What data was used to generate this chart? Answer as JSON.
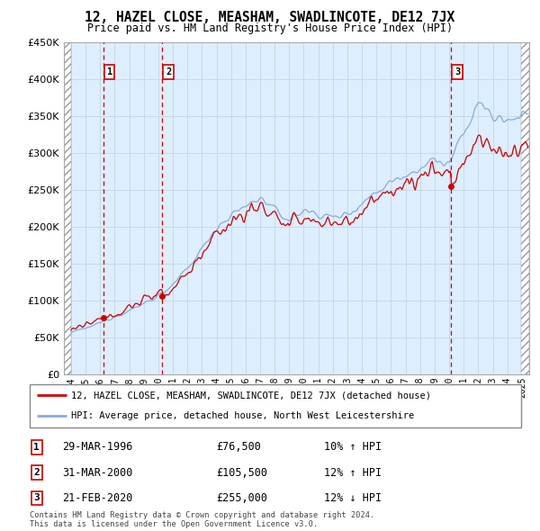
{
  "title": "12, HAZEL CLOSE, MEASHAM, SWADLINCOTE, DE12 7JX",
  "subtitle": "Price paid vs. HM Land Registry's House Price Index (HPI)",
  "sale_dates_float": [
    1996.21,
    2000.25,
    2020.12
  ],
  "sale_prices": [
    76500,
    105500,
    255000
  ],
  "sale_labels": [
    "1",
    "2",
    "3"
  ],
  "legend_line1": "12, HAZEL CLOSE, MEASHAM, SWADLINCOTE, DE12 7JX (detached house)",
  "legend_line2": "HPI: Average price, detached house, North West Leicestershire",
  "table_rows": [
    [
      "1",
      "29-MAR-1996",
      "£76,500",
      "10% ↑ HPI"
    ],
    [
      "2",
      "31-MAR-2000",
      "£105,500",
      "12% ↑ HPI"
    ],
    [
      "3",
      "21-FEB-2020",
      "£255,000",
      "12% ↓ HPI"
    ]
  ],
  "footnote": "Contains HM Land Registry data © Crown copyright and database right 2024.\nThis data is licensed under the Open Government Licence v3.0.",
  "price_color": "#cc0000",
  "hpi_color": "#88aadd",
  "sale_dot_color": "#cc0000",
  "dashed_line_color": "#cc0000",
  "grid_color": "#c8d8e8",
  "background_color": "#ddeeff",
  "ylim": [
    0,
    450000
  ],
  "xlim_start": 1993.5,
  "xlim_end": 2025.5
}
